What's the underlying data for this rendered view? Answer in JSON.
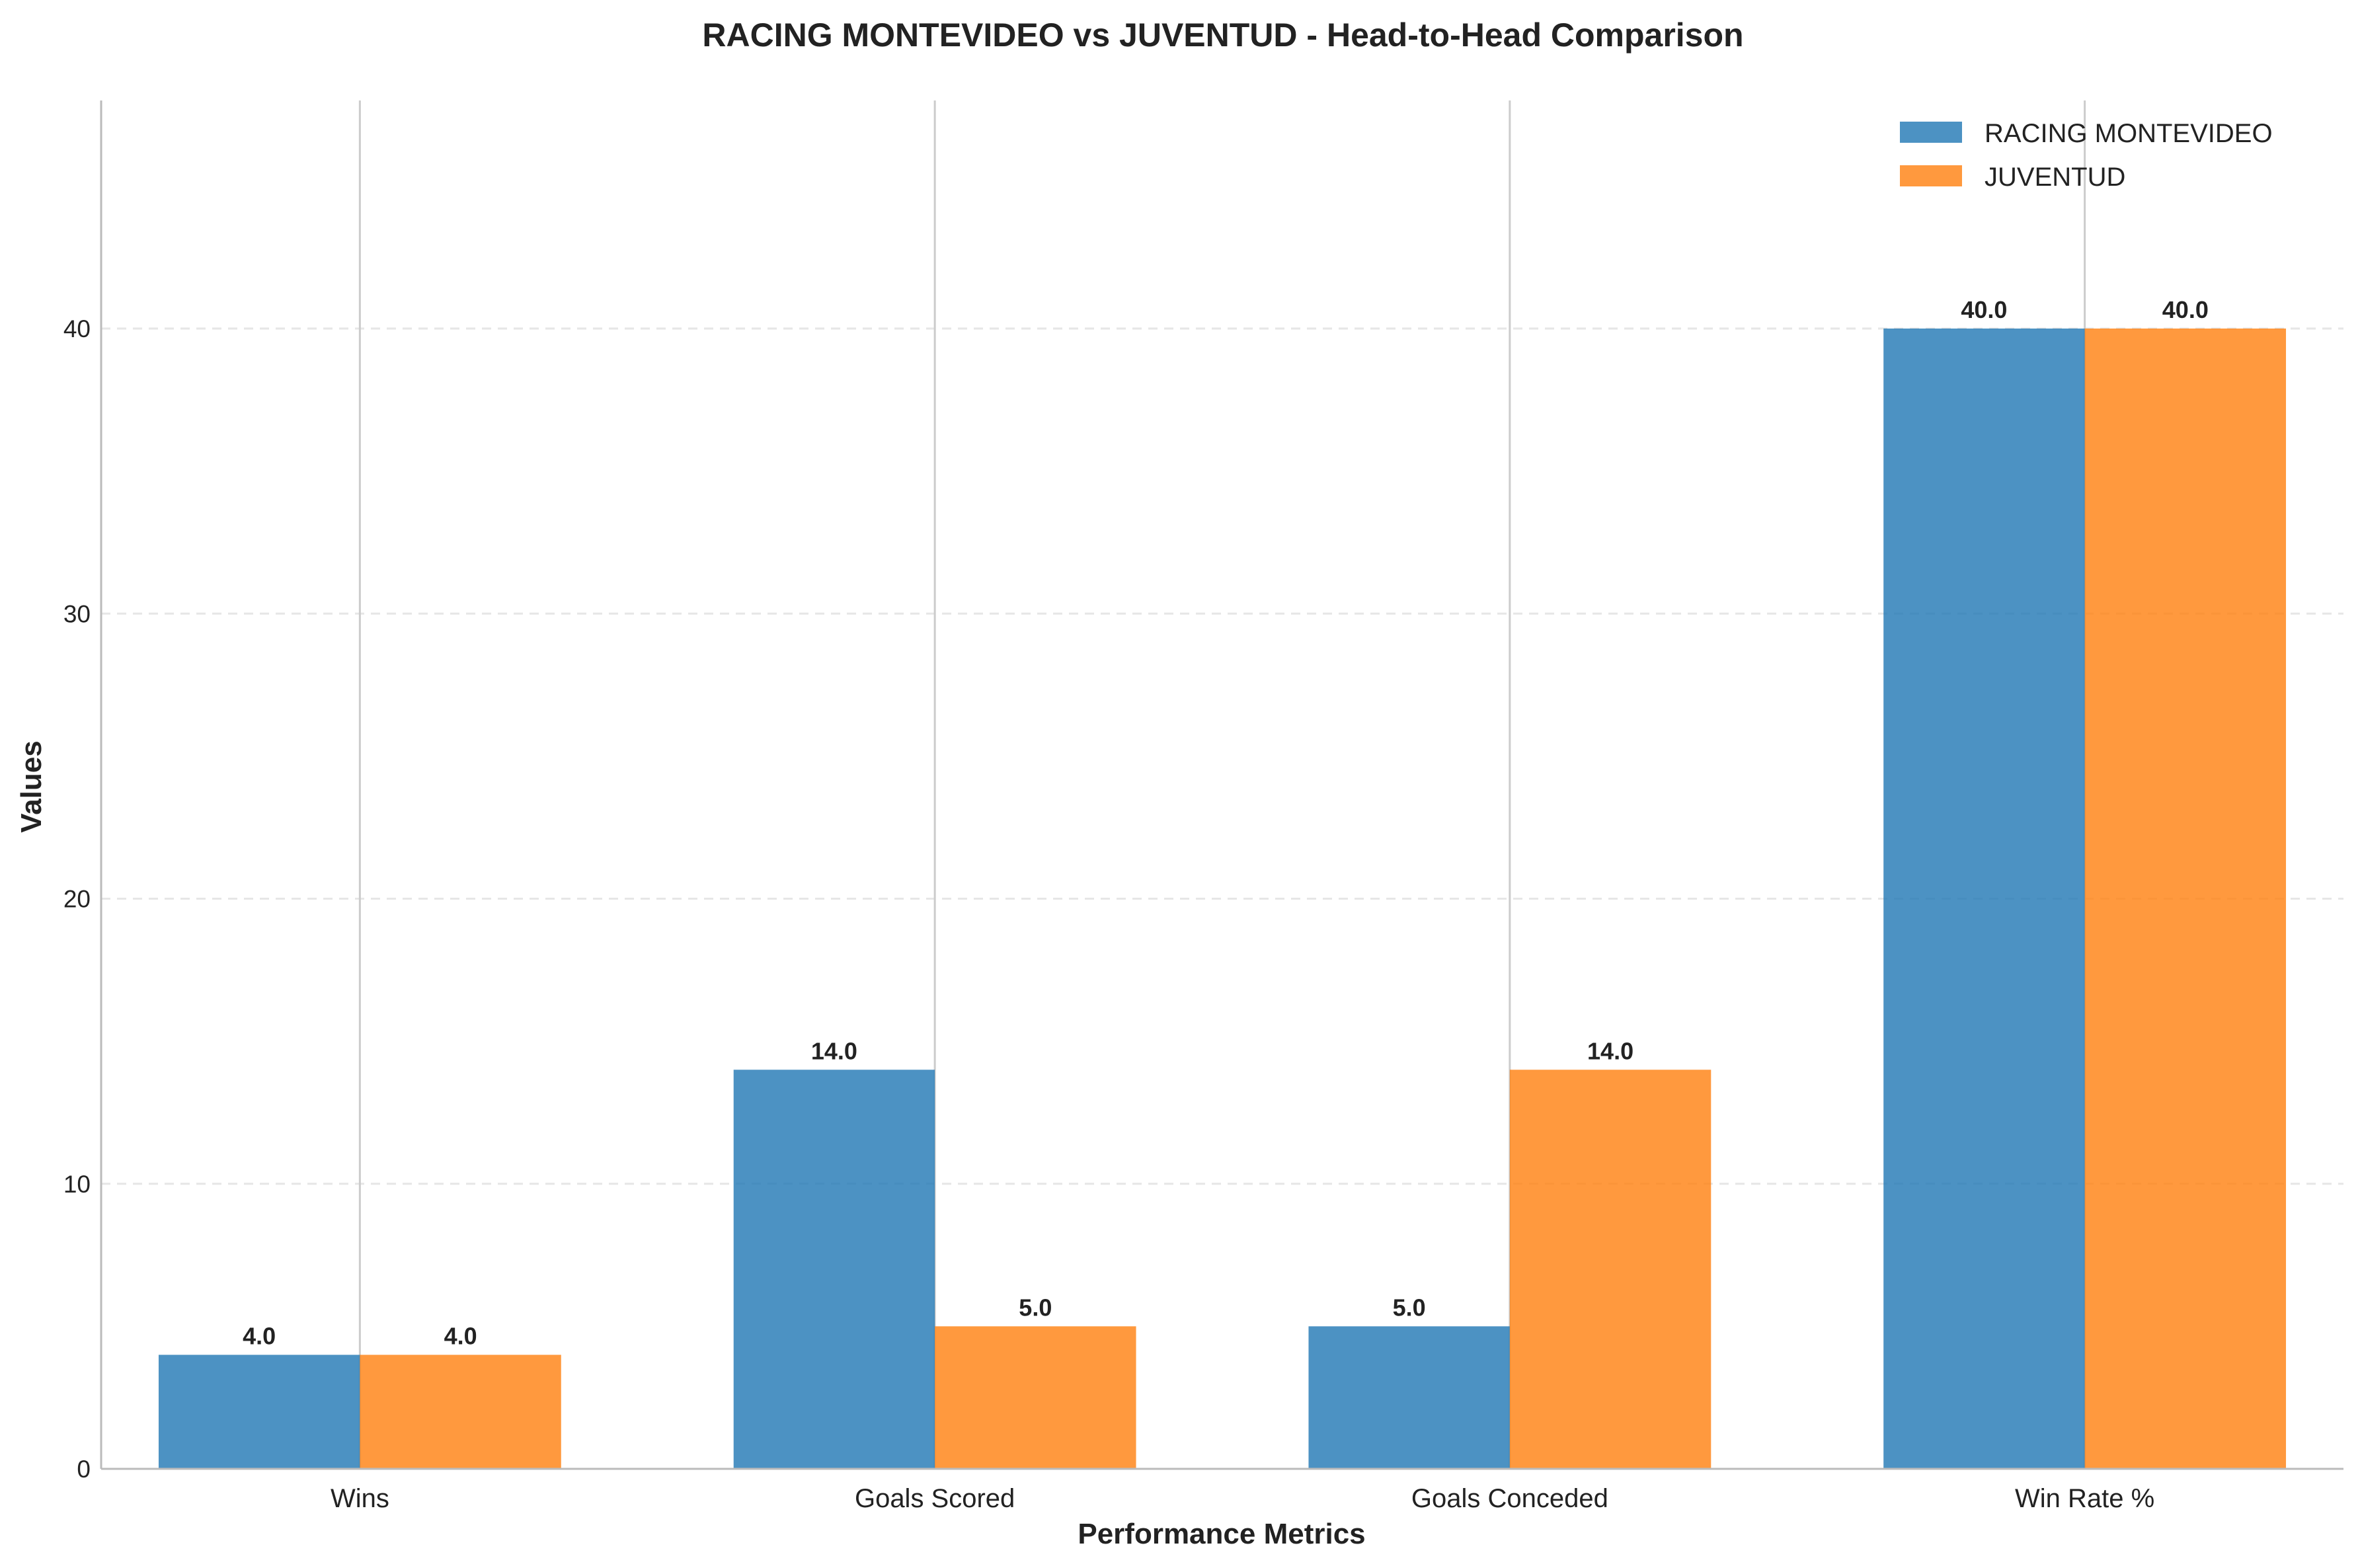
{
  "chart_data": {
    "type": "bar",
    "title": "RACING MONTEVIDEO vs JUVENTUD - Head-to-Head Comparison",
    "xlabel": "Performance Metrics",
    "ylabel": "Values",
    "categories": [
      "Wins",
      "Goals Scored",
      "Goals Conceded",
      "Win Rate %"
    ],
    "series": [
      {
        "name": "RACING MONTEVIDEO",
        "values": [
          4.0,
          14.0,
          5.0,
          40.0
        ],
        "color": "#1f77b4"
      },
      {
        "name": "JUVENTUD",
        "values": [
          4.0,
          5.0,
          14.0,
          40.0
        ],
        "color": "#ff7f0e"
      }
    ],
    "ylim": [
      0,
      48
    ],
    "yticks": [
      0,
      10,
      20,
      30,
      40
    ],
    "data_label_format": "one-decimal",
    "grid": "y-dashed",
    "legend_position": "top-right"
  }
}
